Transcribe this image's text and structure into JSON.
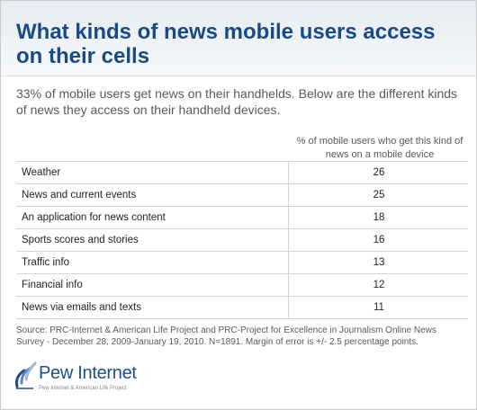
{
  "title": "What kinds of news mobile users access on their cells",
  "subtitle": "33% of mobile users get news on their handhelds. Below are the different kinds of news they access on their handheld devices.",
  "chart_data": {
    "type": "table",
    "title": "What kinds of news mobile users access on their cells",
    "column_header": "% of mobile users who get this kind of news on a mobile device",
    "categories": [
      "Weather",
      "News and current events",
      "An application for news content",
      "Sports scores and stories",
      "Traffic info",
      "Financial info",
      "News via emails and texts"
    ],
    "values": [
      26,
      25,
      18,
      16,
      13,
      12,
      11
    ]
  },
  "source": "Source: PRC-Internet & American Life Project and PRC-Project for Excellence in Journalism Online News Survey - December 28, 2009-January 19, 2010. N=1891. Margin of error is +/- 2.5 percentage points.",
  "logo": {
    "name": "Pew Internet",
    "tagline": "Pew Internet & American Life Project"
  },
  "colors": {
    "title": "#1a4a86",
    "header_bg": "#e6ecf2",
    "text": "#595959",
    "rule": "#d4d4d4"
  }
}
